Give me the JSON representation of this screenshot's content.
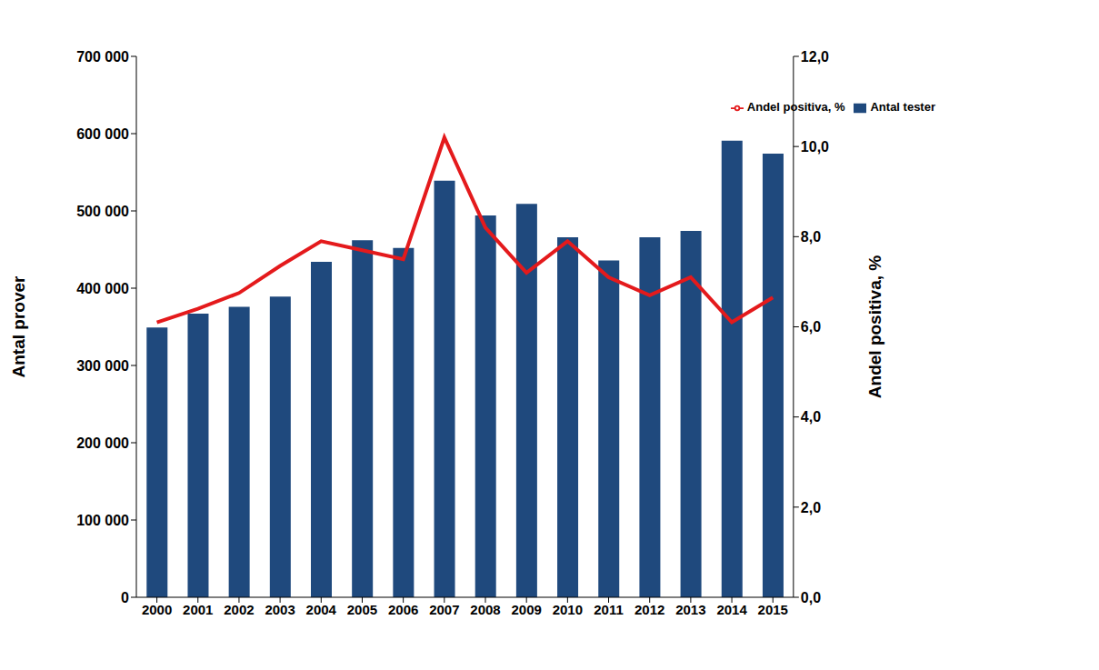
{
  "chart_data": {
    "type": "bar",
    "categories": [
      "2000",
      "2001",
      "2002",
      "2003",
      "2004",
      "2005",
      "2006",
      "2007",
      "2008",
      "2009",
      "2010",
      "2011",
      "2012",
      "2013",
      "2014",
      "2015"
    ],
    "series": [
      {
        "name": "Antal tester",
        "type": "bar",
        "color": "#1f497d",
        "values": [
          349000,
          367000,
          376000,
          389000,
          434000,
          462000,
          452000,
          539000,
          494000,
          509000,
          466000,
          436000,
          466000,
          474000,
          591000,
          574000
        ]
      },
      {
        "name": "Andel positiva, %",
        "type": "line",
        "color": "#e41a1c",
        "axis": "y2",
        "values": [
          6.1,
          6.4,
          6.75,
          7.35,
          7.9,
          7.7,
          7.5,
          10.2,
          8.2,
          7.2,
          7.9,
          7.1,
          6.7,
          7.1,
          6.1,
          6.65
        ]
      }
    ],
    "y_label": "Antal prover",
    "y2_label": "Andel positiva, %",
    "ylim": [
      0,
      700000
    ],
    "yticks": [
      0,
      {
        "value": 100000,
        "label": "100 000"
      },
      {
        "value": 200000,
        "label": "200 000"
      },
      {
        "value": 300000,
        "label": "300 000"
      },
      {
        "value": 400000,
        "label": "400 000"
      },
      {
        "value": 500000,
        "label": "500 000"
      },
      {
        "value": 600000,
        "label": "600 000"
      },
      {
        "value": 700000,
        "label": "700 000"
      }
    ],
    "y2lim": [
      0,
      12
    ],
    "y2ticks": [
      {
        "value": 0,
        "label": "0,0"
      },
      {
        "value": 2,
        "label": "2,0"
      },
      {
        "value": 4,
        "label": "4,0"
      },
      {
        "value": 6,
        "label": "6,0"
      },
      {
        "value": 8,
        "label": "8,0"
      },
      {
        "value": 10,
        "label": "10,0"
      },
      {
        "value": 12,
        "label": "12,0"
      }
    ],
    "grid": false,
    "legend": "top right"
  }
}
